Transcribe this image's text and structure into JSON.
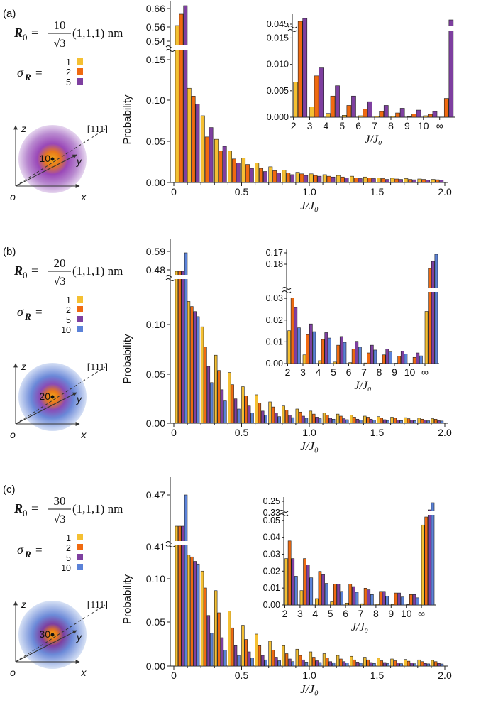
{
  "figure": {
    "xlabel": "J/J₀",
    "ylabel": "Probability",
    "sigma_label": "σ_R =",
    "axis_labels_3d": {
      "z": "z",
      "o": "o",
      "x": "x",
      "y": "y",
      "dir": "[111]"
    },
    "panels": [
      {
        "letter": "(a)",
        "r0_num": "10",
        "formula_tail": "(1,1,1) nm",
        "sqrt_text": "√3",
        "center_label": "10"
      },
      {
        "letter": "(b)",
        "r0_num": "20",
        "formula_tail": "(1,1,1) nm",
        "sqrt_text": "√3",
        "center_label": "20"
      },
      {
        "letter": "(c)",
        "r0_num": "30",
        "formula_tail": "(1,1,1) nm",
        "sqrt_text": "√3",
        "center_label": "30"
      }
    ]
  },
  "colors": {
    "1": "#f5c032",
    "2": "#f06a10",
    "5": "#7e3fa0",
    "10": "#5b82d8"
  },
  "chart_data": [
    {
      "type": "bar",
      "panel": "a",
      "sigma_values": [
        "1",
        "2",
        "5"
      ],
      "xlim": [
        0,
        2.0
      ],
      "xticks": [
        "0",
        "0.5",
        "1.0",
        "1.5",
        "2.0"
      ],
      "yticks": [
        "0.00",
        "0.05",
        "0.10",
        "0.15"
      ],
      "ybreak_ticks": [
        "0.54",
        "0.56",
        "0.66"
      ],
      "main": {
        "x": [
          0.05,
          0.15,
          0.25,
          0.35,
          0.45,
          0.55,
          0.65,
          0.75,
          0.85,
          0.95,
          1.05,
          1.15,
          1.25,
          1.35,
          1.45,
          1.55,
          1.65,
          1.75,
          1.85,
          1.95
        ],
        "series": [
          {
            "name": "1",
            "values": [
              0.54,
              0.12,
              0.085,
              0.055,
              0.04,
              0.031,
              0.025,
              0.02,
              0.016,
              0.013,
              0.011,
              0.01,
              0.009,
              0.008,
              0.007,
              0.006,
              0.0055,
              0.005,
              0.0045,
              0.004
            ]
          },
          {
            "name": "2",
            "values": [
              0.56,
              0.11,
              0.058,
              0.04,
              0.03,
              0.023,
              0.018,
              0.015,
              0.012,
              0.011,
              0.009,
              0.008,
              0.007,
              0.006,
              0.006,
              0.005,
              0.0045,
              0.004,
              0.004,
              0.0035
            ]
          },
          {
            "name": "5",
            "values": [
              0.66,
              0.1,
              0.07,
              0.046,
              0.025,
              0.018,
              0.014,
              0.012,
              0.01,
              0.009,
              0.008,
              0.007,
              0.006,
              0.005,
              0.005,
              0.004,
              0.004,
              0.0035,
              0.003,
              0.003
            ]
          }
        ]
      },
      "inset": {
        "categories": [
          "2",
          "3",
          "4",
          "5",
          "6",
          "7",
          "8",
          "9",
          "10",
          "∞"
        ],
        "xlabel": "J/J₀",
        "yticks": [
          "0.000",
          "0.005",
          "0.010",
          "0.015"
        ],
        "ybreak_ticks": [
          "0.045"
        ],
        "series": [
          {
            "name": "1",
            "values": [
              0.0075,
              0.0022,
              0.0008,
              0.0004,
              0.0003,
              0.0002,
              0.0002,
              0.0001,
              0.0003,
              0
            ]
          },
          {
            "name": "2",
            "values": [
              0.0195,
              0.0088,
              0.0045,
              0.0025,
              0.0017,
              0.0012,
              0.0009,
              0.0007,
              0.0006,
              0.004
            ]
          },
          {
            "name": "5",
            "values": [
              0.0188,
              0.0105,
              0.0067,
              0.0045,
              0.0033,
              0.0025,
              0.0019,
              0.0015,
              0.0012,
              0.045
            ]
          }
        ]
      }
    },
    {
      "type": "bar",
      "panel": "b",
      "sigma_values": [
        "1",
        "2",
        "5",
        "10"
      ],
      "xlim": [
        0,
        2.0
      ],
      "xticks": [
        "0",
        "0.5",
        "1.0",
        "1.5",
        "2.0"
      ],
      "yticks": [
        "0.00",
        "0.05",
        "0.10"
      ],
      "ybreak_ticks": [
        "0.48",
        "0.59"
      ],
      "main": {
        "x": [
          0.05,
          0.15,
          0.25,
          0.35,
          0.45,
          0.55,
          0.65,
          0.75,
          0.85,
          0.95,
          1.05,
          1.15,
          1.25,
          1.35,
          1.45,
          1.55,
          1.65,
          1.75,
          1.85,
          1.95
        ],
        "series": [
          {
            "name": "1",
            "values": [
              0.48,
              0.12,
              0.095,
              0.067,
              0.05,
              0.036,
              0.028,
              0.021,
              0.017,
              0.014,
              0.012,
              0.01,
              0.009,
              0.008,
              0.007,
              0.0065,
              0.006,
              0.0055,
              0.005,
              0.0045
            ]
          },
          {
            "name": "2",
            "values": [
              0.48,
              0.115,
              0.075,
              0.052,
              0.038,
              0.027,
              0.02,
              0.016,
              0.013,
              0.011,
              0.009,
              0.008,
              0.007,
              0.006,
              0.006,
              0.005,
              0.005,
              0.0045,
              0.004,
              0.004
            ]
          },
          {
            "name": "5",
            "values": [
              0.48,
              0.11,
              0.056,
              0.033,
              0.024,
              0.017,
              0.012,
              0.01,
              0.008,
              0.007,
              0.006,
              0.005,
              0.0045,
              0.004,
              0.004,
              0.0035,
              0.003,
              0.003,
              0.003,
              0.0025
            ]
          },
          {
            "name": "10",
            "values": [
              0.59,
              0.105,
              0.04,
              0.022,
              0.014,
              0.01,
              0.008,
              0.0065,
              0.0055,
              0.005,
              0.0045,
              0.004,
              0.0035,
              0.0032,
              0.003,
              0.0028,
              0.0026,
              0.0025,
              0.0024,
              0.0022
            ]
          }
        ]
      },
      "inset": {
        "categories": [
          "2",
          "3",
          "4",
          "5",
          "6",
          "7",
          "8",
          "9",
          "10",
          "∞"
        ],
        "xlabel": "J/J₀",
        "yticks": [
          "0.00",
          "0.01",
          "0.02",
          "0.03"
        ],
        "ybreak_ticks": [
          "0.17",
          "0.18"
        ],
        "series": [
          {
            "name": "1",
            "values": [
              0.017,
              0.0045,
              0.0015,
              0.0008,
              0.0005,
              0.0003,
              0.0002,
              0.0002,
              0.0002,
              0.027
            ]
          },
          {
            "name": "2",
            "values": [
              0.034,
              0.015,
              0.0125,
              0.0095,
              0.0075,
              0.0055,
              0.0045,
              0.0038,
              0.0032,
              0.17
            ]
          },
          {
            "name": "5",
            "values": [
              0.029,
              0.0205,
              0.016,
              0.014,
              0.0115,
              0.0095,
              0.0075,
              0.0065,
              0.0055,
              0.17
            ]
          },
          {
            "name": "10",
            "values": [
              0.0185,
              0.0165,
              0.0132,
              0.011,
              0.0085,
              0.007,
              0.006,
              0.005,
              0.004,
              0.18
            ]
          }
        ]
      }
    },
    {
      "type": "bar",
      "panel": "c",
      "sigma_values": [
        "1",
        "2",
        "5",
        "10"
      ],
      "xlim": [
        0,
        2.0
      ],
      "xticks": [
        "0",
        "0.5",
        "1.0",
        "1.5",
        "2.0"
      ],
      "yticks": [
        "0.00",
        "0.05",
        "0.10"
      ],
      "ybreak_ticks": [
        "0.41",
        "0.47"
      ],
      "main": {
        "x": [
          0.05,
          0.15,
          0.25,
          0.35,
          0.45,
          0.55,
          0.65,
          0.75,
          0.85,
          0.95,
          1.05,
          1.15,
          1.25,
          1.35,
          1.45,
          1.55,
          1.65,
          1.75,
          1.85,
          1.95
        ],
        "series": [
          {
            "name": "1",
            "values": [
              0.41,
              0.125,
              0.107,
              0.085,
              0.062,
              0.046,
              0.036,
              0.028,
              0.023,
              0.019,
              0.016,
              0.014,
              0.012,
              0.011,
              0.01,
              0.009,
              0.008,
              0.0075,
              0.007,
              0.0065
            ]
          },
          {
            "name": "2",
            "values": [
              0.41,
              0.123,
              0.088,
              0.06,
              0.043,
              0.03,
              0.023,
              0.018,
              0.014,
              0.012,
              0.01,
              0.009,
              0.008,
              0.007,
              0.007,
              0.006,
              0.006,
              0.0055,
              0.005,
              0.005
            ]
          },
          {
            "name": "5",
            "values": [
              0.41,
              0.118,
              0.057,
              0.032,
              0.023,
              0.016,
              0.012,
              0.01,
              0.008,
              0.007,
              0.006,
              0.005,
              0.005,
              0.0045,
              0.004,
              0.004,
              0.0035,
              0.0035,
              0.003,
              0.003
            ]
          },
          {
            "name": "10",
            "values": [
              0.47,
              0.115,
              0.037,
              0.018,
              0.012,
              0.009,
              0.007,
              0.006,
              0.005,
              0.0045,
              0.004,
              0.0038,
              0.0035,
              0.0033,
              0.003,
              0.0028,
              0.0027,
              0.0026,
              0.0025,
              0.0024
            ]
          }
        ]
      },
      "inset": {
        "categories": [
          "2",
          "3",
          "4",
          "5",
          "6",
          "7",
          "8",
          "9",
          "10",
          "∞"
        ],
        "xlabel": "J/J₀",
        "yticks": [
          "0.00",
          "0.01",
          "0.02",
          "0.03",
          "0.04",
          "0.05"
        ],
        "ybreak_ticks": [
          "0.25",
          "0.33"
        ],
        "series": [
          {
            "name": "1",
            "values": [
              0.029,
              0.009,
              0.004,
              0.002,
              0.0012,
              0.0008,
              0.0005,
              0.0004,
              0.0003,
              0.05
            ]
          },
          {
            "name": "2",
            "values": [
              0.04,
              0.029,
              0.021,
              0.013,
              0.013,
              0.0105,
              0.0085,
              0.0075,
              0.0065,
              0.25
            ]
          },
          {
            "name": "5",
            "values": [
              0.029,
              0.025,
              0.019,
              0.013,
              0.0115,
              0.0095,
              0.0085,
              0.0075,
              0.0065,
              0.25
            ]
          },
          {
            "name": "10",
            "values": [
              0.018,
              0.017,
              0.0135,
              0.0085,
              0.008,
              0.0065,
              0.0055,
              0.005,
              0.0045,
              0.33
            ]
          }
        ]
      }
    }
  ]
}
